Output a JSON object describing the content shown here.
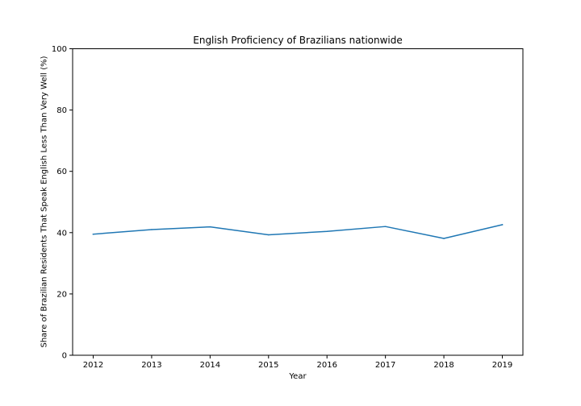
{
  "chart_data": {
    "type": "line",
    "title": "English Proficiency of Brazilians nationwide",
    "xlabel": "Year",
    "ylabel": "Share of Brazilian Residents That Speak English Less Than Very Well (%)",
    "x": [
      "2012",
      "2013",
      "2014",
      "2015",
      "2016",
      "2017",
      "2018",
      "2019"
    ],
    "series": [
      {
        "values": [
          39.5,
          41.0,
          41.9,
          39.3,
          40.4,
          42.0,
          38.1,
          42.6
        ],
        "color": "#1f77b4"
      }
    ],
    "ylim": [
      0,
      100
    ],
    "yticks": [
      "0",
      "20",
      "40",
      "60",
      "80",
      "100"
    ],
    "grid": false,
    "legend": false
  }
}
